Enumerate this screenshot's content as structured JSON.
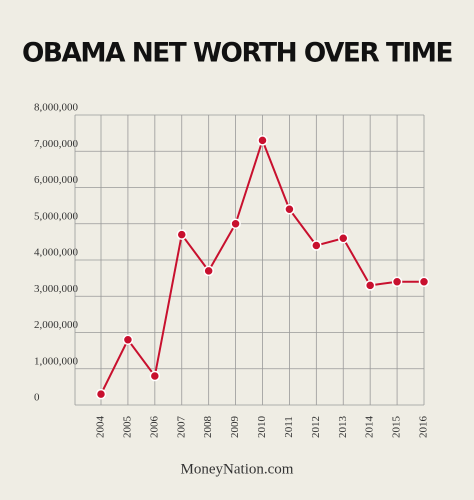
{
  "chart_data": {
    "type": "line",
    "title": "OBAMA NET WORTH OVER TIME",
    "footer": "MoneyNation.com",
    "categories": [
      "2004",
      "2005",
      "2006",
      "2007",
      "2008",
      "2009",
      "2010",
      "2011",
      "2012",
      "2013",
      "2014",
      "2015",
      "2016"
    ],
    "values": [
      300000,
      1800000,
      800000,
      4700000,
      3700000,
      5000000,
      7300000,
      5400000,
      4400000,
      4600000,
      3300000,
      3400000,
      3400000
    ],
    "color": "#c8102e",
    "ylim": [
      0,
      8000000
    ],
    "yticks": [
      0,
      {
        "value": 1000000,
        "label": "1,000,000"
      },
      {
        "value": 2000000,
        "label": "2,000,000"
      },
      {
        "value": 3000000,
        "label": "3,000,000"
      },
      {
        "value": 4000000,
        "label": "4,000,000"
      },
      {
        "value": 5000000,
        "label": "5,000,000"
      },
      {
        "value": 6000000,
        "label": "6,000,000"
      },
      {
        "value": 7000000,
        "label": "7,000,000"
      },
      {
        "value": 8000000,
        "label": "8,000,000"
      }
    ],
    "grid": true
  }
}
